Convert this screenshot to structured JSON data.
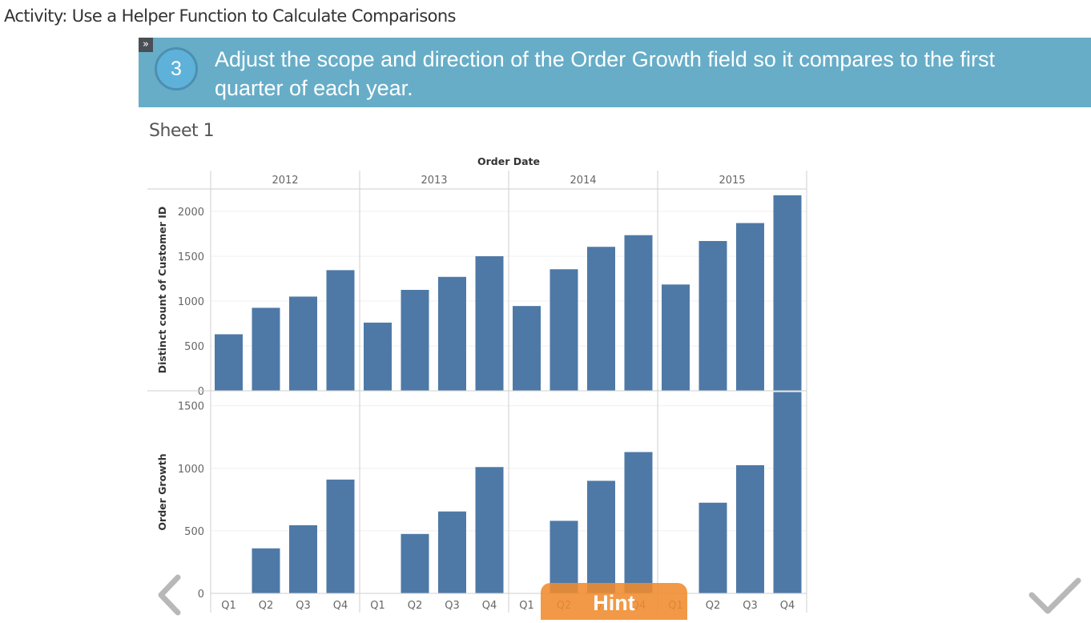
{
  "page": {
    "title": "Activity: Use a Helper Function to Calculate Comparisons"
  },
  "step": {
    "toggle_label": "»",
    "number": "3",
    "instruction": "Adjust the scope and direction of the Order Growth field so it compares to the first quarter of each year."
  },
  "sheet": {
    "title": "Sheet 1"
  },
  "controls": {
    "hint_label": "Hint"
  },
  "icons": {
    "prev": "chevron-left-icon",
    "next": "checkmark-icon"
  },
  "colors": {
    "banner": "#67adc8",
    "bar": "#4e79a7",
    "hint": "#f08b2e"
  },
  "chart_data": {
    "type": "bar",
    "column_header": "Order Date",
    "years": [
      "2012",
      "2013",
      "2014",
      "2015"
    ],
    "quarters": [
      "Q1",
      "Q2",
      "Q3",
      "Q4"
    ],
    "panes": [
      {
        "ylabel": "Distinct count of Customer ID",
        "ylim": [
          0,
          2250
        ],
        "ticks": [
          0,
          500,
          1000,
          1500,
          2000
        ],
        "values": [
          [
            630,
            925,
            1050,
            1345
          ],
          [
            760,
            1125,
            1270,
            1500
          ],
          [
            945,
            1355,
            1605,
            1735
          ],
          [
            1185,
            1670,
            1870,
            2180
          ]
        ]
      },
      {
        "ylabel": "Order Growth",
        "ylim": [
          0,
          1620
        ],
        "ticks": [
          0,
          500,
          1000,
          1500
        ],
        "values": [
          [
            0,
            360,
            545,
            910
          ],
          [
            0,
            475,
            655,
            1010
          ],
          [
            0,
            580,
            900,
            1130
          ],
          [
            0,
            725,
            1025,
            1610
          ]
        ]
      }
    ]
  }
}
